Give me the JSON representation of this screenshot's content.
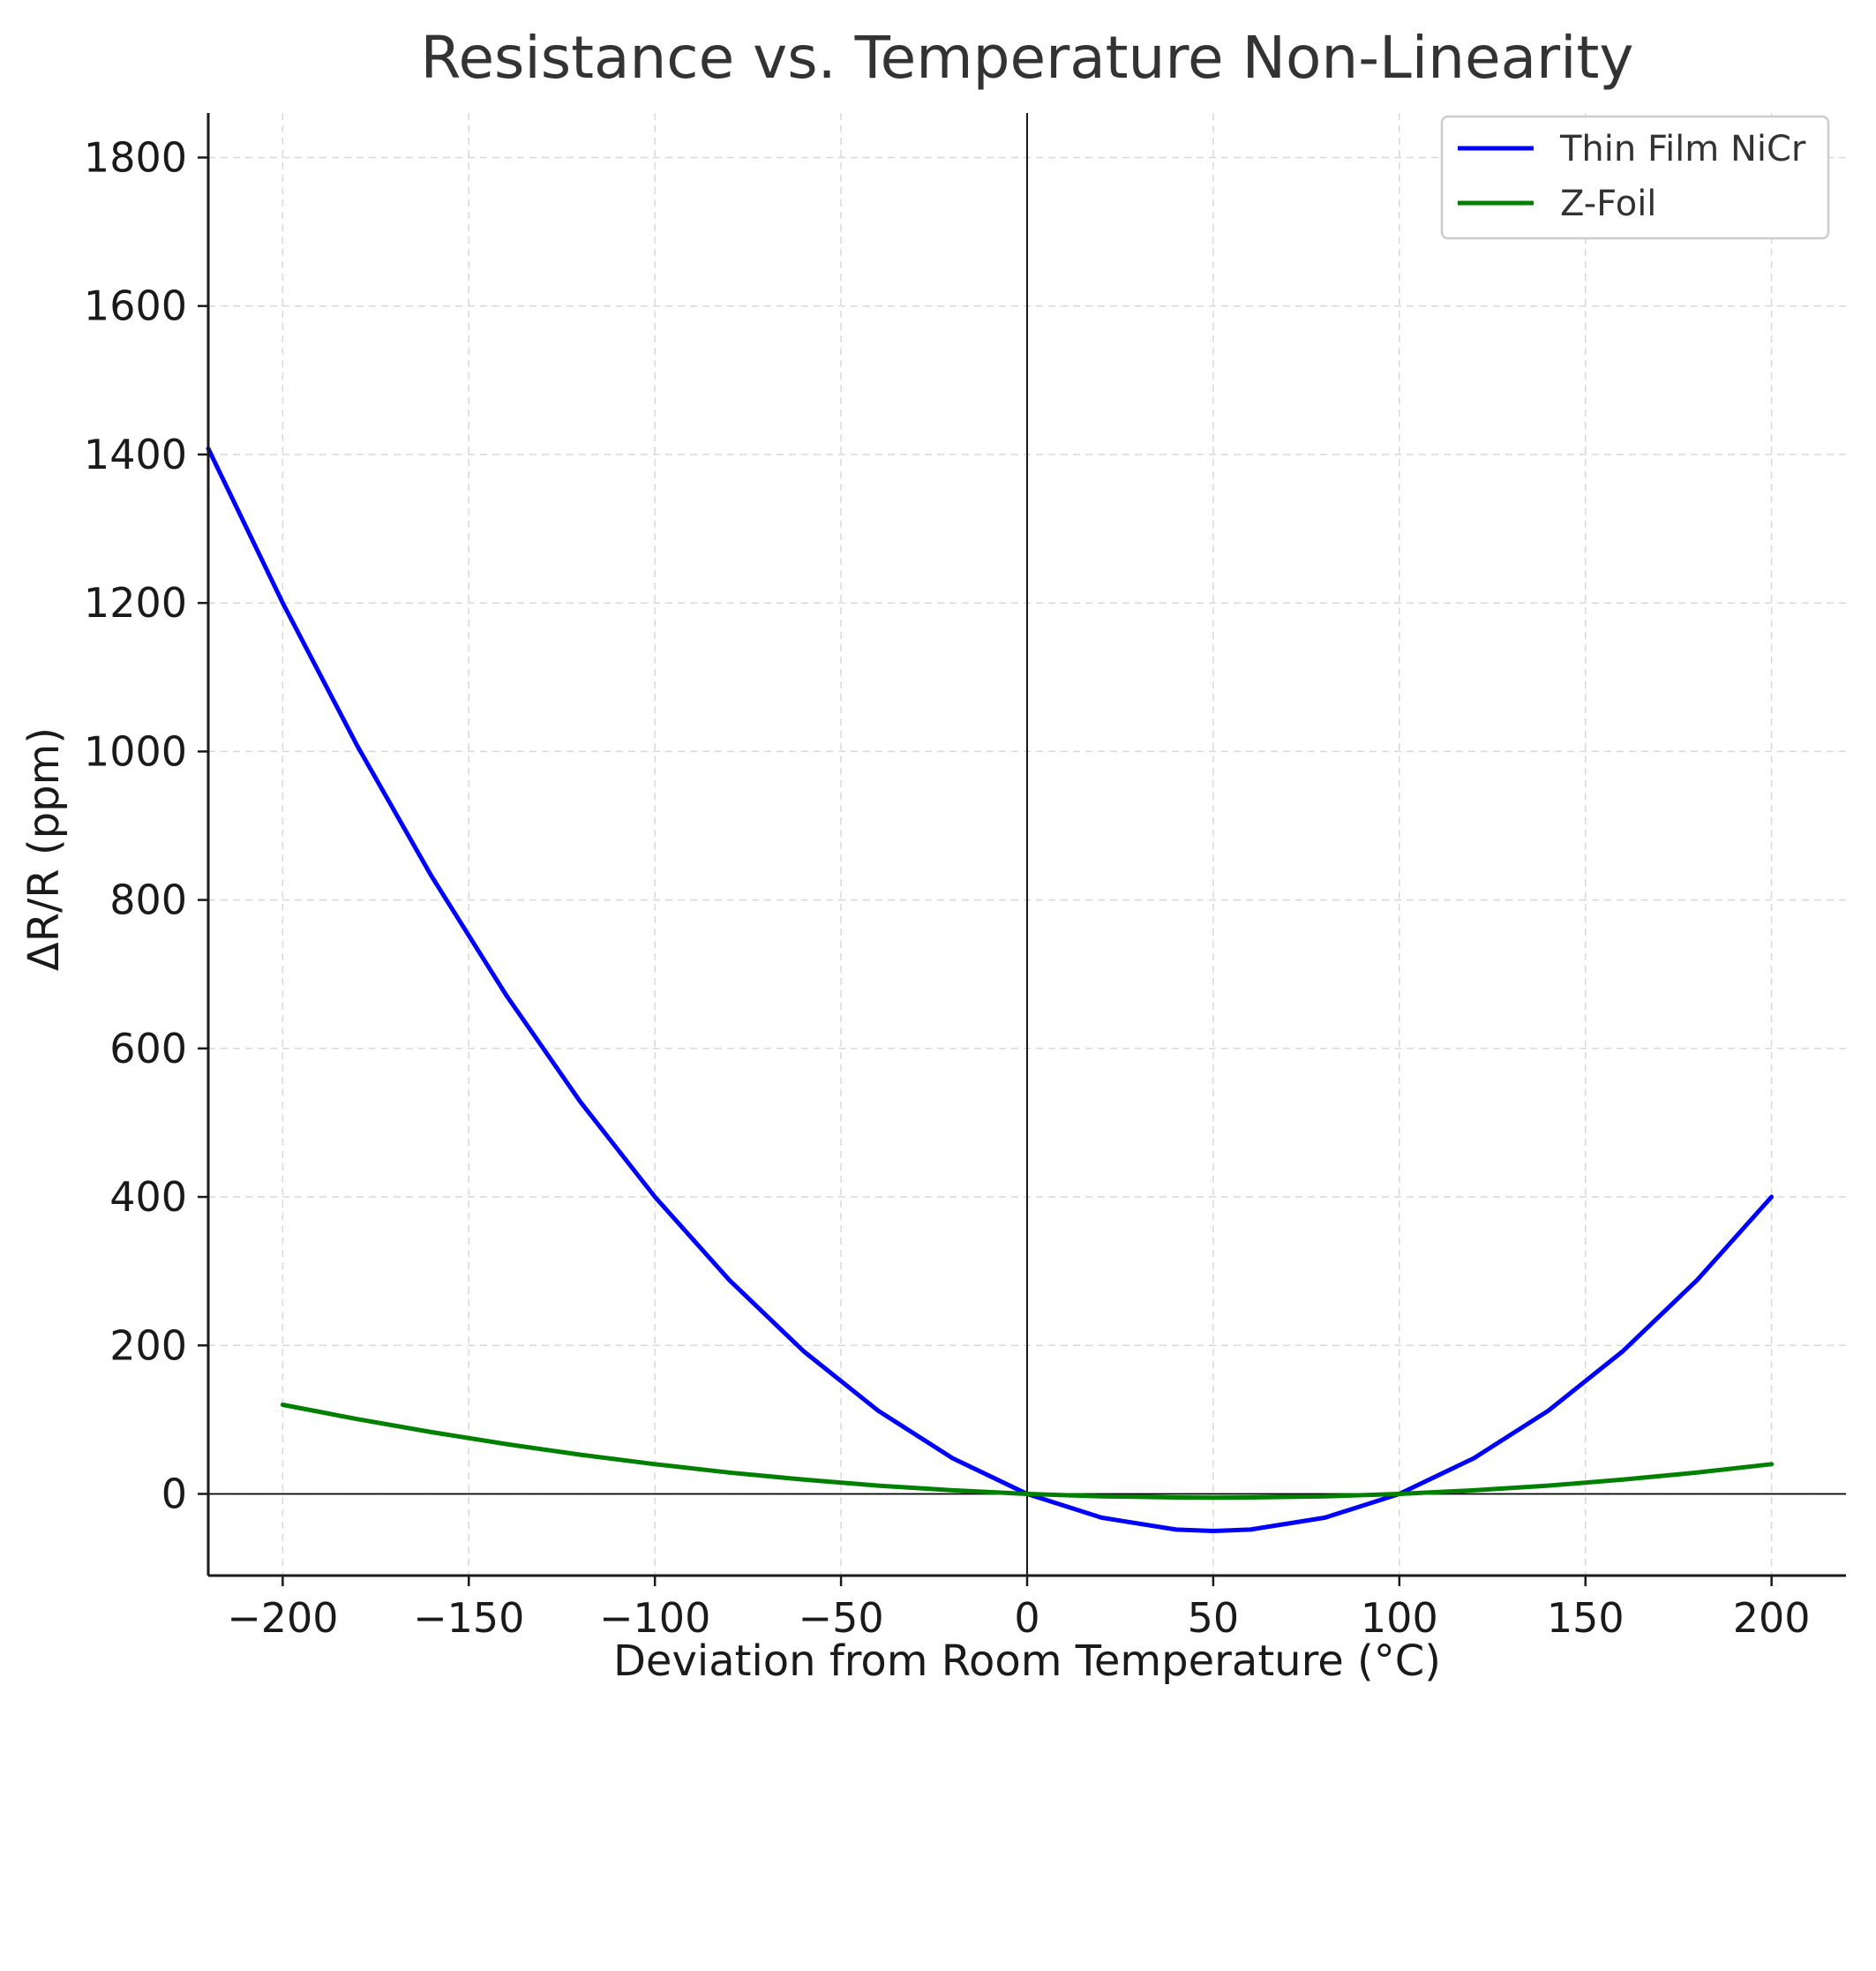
{
  "chart_data": {
    "type": "line",
    "title": "Resistance vs. Temperature Non-Linearity",
    "xlabel": "Deviation from Room Temperature (°C)",
    "ylabel": "ΔR/R (ppm)",
    "xlim": [
      -220,
      220
    ],
    "ylim": [
      -110,
      1860
    ],
    "xticks": [
      -200,
      -150,
      -100,
      -50,
      0,
      50,
      100,
      150,
      200
    ],
    "xtick_labels": [
      "−200",
      "−150",
      "−100",
      "−50",
      "0",
      "50",
      "100",
      "150",
      "200"
    ],
    "yticks": [
      0,
      200,
      400,
      600,
      800,
      1000,
      1200,
      1400,
      1600,
      1800
    ],
    "ytick_labels": [
      "0",
      "200",
      "400",
      "600",
      "800",
      "1000",
      "1200",
      "1400",
      "1600",
      "1800"
    ],
    "grid": true,
    "legend_position": "top-right",
    "reference_lines": {
      "x": 0,
      "y": 0
    },
    "series": [
      {
        "name": "Thin Film NiCr",
        "color": "#0000ff",
        "x": [
          -220,
          -200,
          -180,
          -160,
          -140,
          -120,
          -100,
          -80,
          -60,
          -40,
          -20,
          0,
          20,
          40,
          50,
          60,
          80,
          100,
          120,
          140,
          160,
          180,
          200
        ],
        "y": [
          1408,
          1200,
          1008,
          832,
          672,
          528,
          400,
          288,
          192,
          112,
          48,
          0,
          -32,
          -48,
          -50,
          -48,
          -32,
          0,
          48,
          112,
          192,
          288,
          400
        ]
      },
      {
        "name": "Z-Foil",
        "color": "#008000",
        "x": [
          -200,
          -180,
          -160,
          -140,
          -120,
          -100,
          -80,
          -60,
          -40,
          -20,
          0,
          20,
          40,
          50,
          60,
          80,
          100,
          120,
          140,
          160,
          180,
          200
        ],
        "y": [
          120,
          100.8,
          83.2,
          67.2,
          52.8,
          40,
          28.8,
          19.2,
          11.2,
          4.8,
          0,
          -3.2,
          -4.8,
          -5,
          -4.8,
          -3.2,
          0,
          4.8,
          11.2,
          19.2,
          28.8,
          40
        ]
      }
    ]
  }
}
